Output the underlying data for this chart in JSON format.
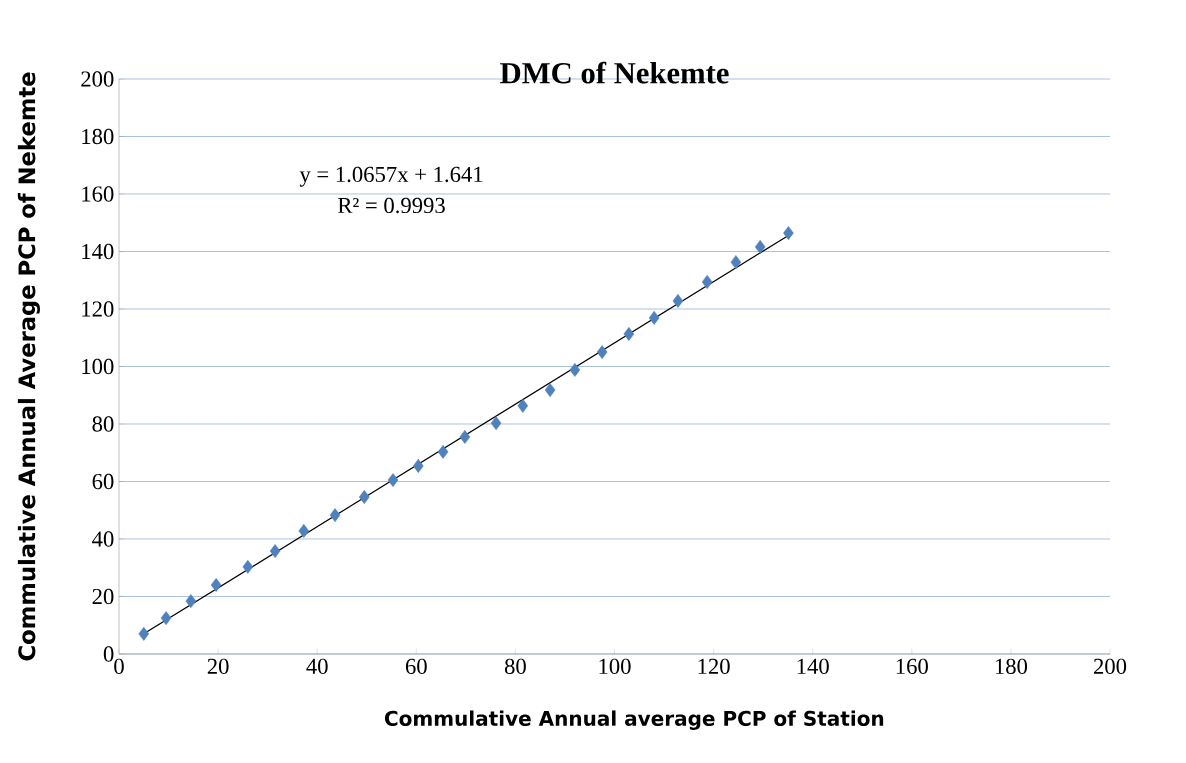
{
  "chart_data": {
    "type": "scatter",
    "title": "DMC of Nekemte",
    "xlabel": "Commulative Annual average PCP of Station",
    "ylabel": "Commulative Annual Average PCP of Nekemte",
    "xlim": [
      0,
      200
    ],
    "ylim": [
      0,
      200
    ],
    "xticks": [
      0,
      20,
      40,
      60,
      80,
      100,
      120,
      140,
      160,
      180,
      200
    ],
    "yticks": [
      0,
      20,
      40,
      60,
      80,
      100,
      120,
      140,
      160,
      180,
      200
    ],
    "grid": "y",
    "annotations": [
      "y = 1.0657x + 1.641",
      "R² = 0.9993"
    ],
    "series": [
      {
        "color": "#4f81bd",
        "marker": "diamond",
        "x": [
          5.0,
          9.5,
          14.5,
          19.6,
          26.0,
          31.5,
          37.3,
          43.6,
          49.5,
          55.3,
          60.4,
          65.4,
          69.8,
          76.1,
          81.5,
          87.0,
          92.0,
          97.5,
          102.9,
          108.0,
          112.8,
          118.7,
          124.5,
          129.4,
          135.1
        ],
        "values": [
          7.0,
          12.5,
          18.4,
          24.0,
          30.3,
          35.8,
          42.8,
          48.3,
          54.6,
          60.5,
          65.4,
          70.3,
          75.5,
          80.3,
          86.3,
          91.8,
          98.8,
          105.0,
          111.3,
          116.9,
          122.8,
          129.4,
          136.3,
          141.6,
          146.4
        ]
      },
      {
        "type": "line",
        "color": "#000000",
        "marker": "none",
        "line_style": "solid",
        "x": [
          5.0,
          135.1
        ],
        "values": [
          7.0,
          145.6
        ]
      }
    ]
  }
}
